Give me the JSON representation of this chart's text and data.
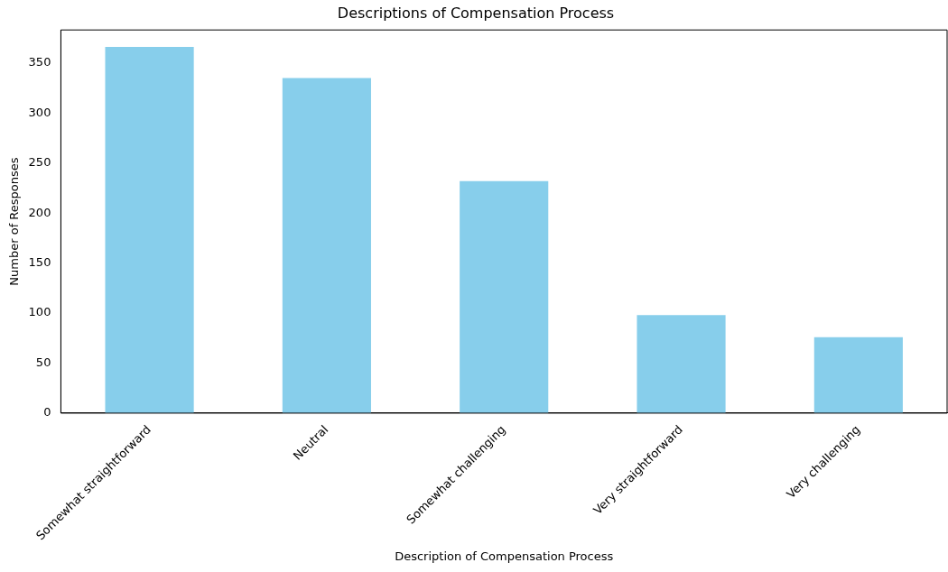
{
  "chart_data": {
    "type": "bar",
    "title": "Descriptions of Compensation Process",
    "xlabel": "Description of Compensation Process",
    "ylabel": "Number of Responses",
    "categories": [
      "Somewhat straightforward",
      "Neutral",
      "Somewhat challenging",
      "Very straightforward",
      "Very challenging"
    ],
    "values": [
      366,
      335,
      232,
      98,
      76
    ],
    "color": "#87ceeb",
    "ylim": [
      0,
      383
    ],
    "yticks": [
      0,
      50,
      100,
      150,
      200,
      250,
      300,
      350
    ],
    "grid": false,
    "legend": false
  }
}
